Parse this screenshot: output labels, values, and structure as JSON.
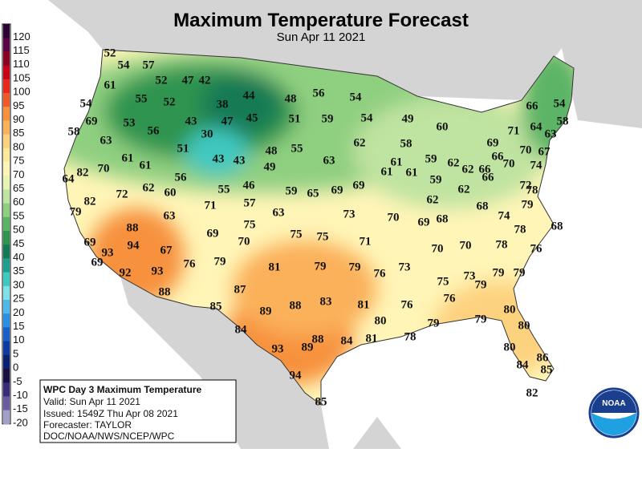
{
  "header": {
    "title": "Maximum Temperature Forecast",
    "subtitle": "Sun Apr 11 2021"
  },
  "legend": {
    "items": [
      {
        "value": 120,
        "color": "#2c0033"
      },
      {
        "value": 115,
        "color": "#5a0047"
      },
      {
        "value": 110,
        "color": "#8b0020"
      },
      {
        "value": 105,
        "color": "#c8001a"
      },
      {
        "value": 100,
        "color": "#e8281e"
      },
      {
        "value": 95,
        "color": "#f05a28"
      },
      {
        "value": 90,
        "color": "#f7913c"
      },
      {
        "value": 85,
        "color": "#fbb05a"
      },
      {
        "value": 80,
        "color": "#fdd27f"
      },
      {
        "value": 75,
        "color": "#fee89a"
      },
      {
        "value": 70,
        "color": "#fff5b7"
      },
      {
        "value": 65,
        "color": "#e6f5b4"
      },
      {
        "value": 60,
        "color": "#bfe3a0"
      },
      {
        "value": 55,
        "color": "#8fcf80"
      },
      {
        "value": 50,
        "color": "#5bb466"
      },
      {
        "value": 45,
        "color": "#2e9450"
      },
      {
        "value": 40,
        "color": "#137a55"
      },
      {
        "value": 35,
        "color": "#1f9e8e"
      },
      {
        "value": 30,
        "color": "#3fc8c0"
      },
      {
        "value": 25,
        "color": "#7ee0e8"
      },
      {
        "value": 20,
        "color": "#4fb8e8"
      },
      {
        "value": 15,
        "color": "#2a8fe0"
      },
      {
        "value": 10,
        "color": "#1a5fc8"
      },
      {
        "value": 5,
        "color": "#0d3a9e"
      },
      {
        "value": 0,
        "color": "#0a1f6e"
      },
      {
        "value": -5,
        "color": "#1a1040"
      },
      {
        "value": -10,
        "color": "#3a2a7a"
      },
      {
        "value": -15,
        "color": "#6a5aa0"
      },
      {
        "value": -20,
        "color": "#a0a0c8"
      }
    ]
  },
  "map": {
    "labels": [
      52,
      54,
      57,
      52,
      47,
      42,
      61,
      55,
      52,
      38,
      44,
      48,
      56,
      54,
      54,
      69,
      53,
      43,
      47,
      45,
      51,
      59,
      54,
      49,
      58,
      56,
      30,
      60,
      71,
      64,
      66,
      54,
      58,
      63,
      63,
      51,
      48,
      55,
      62,
      58,
      69,
      70,
      67,
      61,
      61,
      43,
      43,
      63,
      49,
      61,
      59,
      62,
      62,
      66,
      66,
      70,
      74,
      82,
      70,
      64,
      56,
      61,
      61,
      59,
      66,
      72,
      72,
      62,
      60,
      55,
      46,
      59,
      65,
      69,
      69,
      62,
      62,
      78,
      82,
      71,
      57,
      68,
      79,
      79,
      63,
      73,
      70,
      69,
      68,
      74,
      68,
      88,
      63,
      75,
      69,
      78,
      69,
      94,
      67,
      75,
      75,
      71,
      70,
      70,
      70,
      78,
      76,
      93,
      69,
      76,
      79,
      81,
      79,
      79,
      76,
      73,
      79,
      79,
      92,
      93,
      75,
      73,
      79,
      88,
      87,
      76,
      85,
      89,
      88,
      83,
      81,
      76,
      80,
      80,
      79,
      79,
      80,
      84,
      78,
      81,
      84,
      88,
      89,
      93,
      80,
      86,
      84,
      85,
      94,
      82,
      85
    ]
  },
  "info_box": {
    "title": "WPC Day 3 Maximum Temperature",
    "lines": [
      "Valid: Sun Apr 11 2021",
      "Issued: 1549Z Thu Apr 08 2021",
      "Forecaster: TAYLOR",
      "DOC/NOAA/NWS/NCEP/WPC"
    ]
  },
  "logo": {
    "text": "NOAA"
  }
}
